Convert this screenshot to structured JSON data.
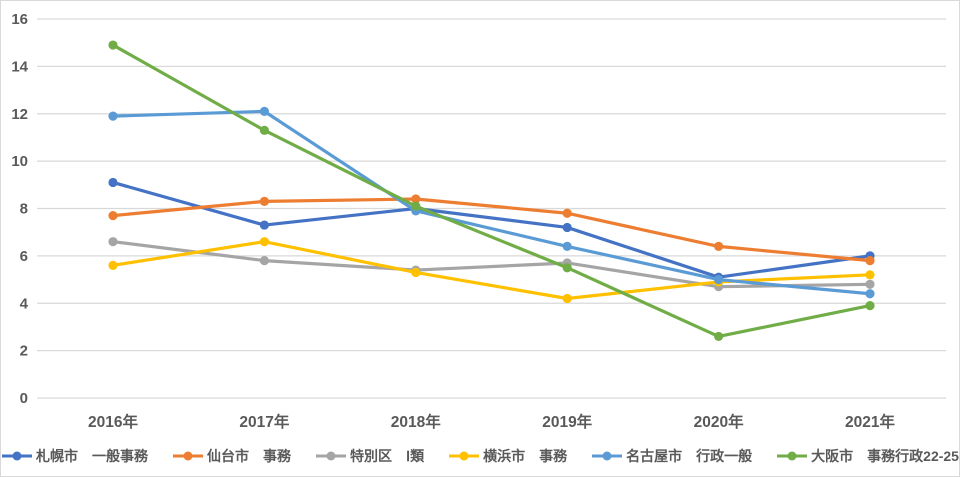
{
  "chart_data": {
    "type": "line",
    "title": "",
    "xlabel": "",
    "ylabel": "",
    "categories": [
      "2016年",
      "2017年",
      "2018年",
      "2019年",
      "2020年",
      "2021年"
    ],
    "series": [
      {
        "name": "札幌市　一般事務",
        "color": "#4472C4",
        "values": [
          9.1,
          7.3,
          8.0,
          7.2,
          5.1,
          6.0
        ]
      },
      {
        "name": "仙台市　事務",
        "color": "#ED7D31",
        "values": [
          7.7,
          8.3,
          8.4,
          7.8,
          6.4,
          5.8
        ]
      },
      {
        "name": "特別区　Ⅰ類",
        "color": "#A5A5A5",
        "values": [
          6.6,
          5.8,
          5.4,
          5.7,
          4.7,
          4.8
        ]
      },
      {
        "name": "横浜市　事務",
        "color": "#FFC000",
        "values": [
          5.6,
          6.6,
          5.3,
          4.2,
          4.9,
          5.2
        ]
      },
      {
        "name": "名古屋市　行政一般",
        "color": "#5B9BD5",
        "values": [
          11.9,
          12.1,
          7.9,
          6.4,
          5.0,
          4.4
        ]
      },
      {
        "name": "大阪市　事務行政22-25",
        "color": "#70AD47",
        "values": [
          14.9,
          11.3,
          8.1,
          5.5,
          2.6,
          3.9
        ]
      }
    ],
    "ylim": [
      0,
      16
    ],
    "yticks": [
      0,
      2,
      4,
      6,
      8,
      10,
      12,
      14,
      16
    ],
    "grid": true,
    "legend_position": "bottom",
    "marker": "circle",
    "colors": {
      "axis_text": "#595959",
      "gridline": "#d9d9d9",
      "background": "#ffffff",
      "border": "#d9d9d9"
    }
  }
}
